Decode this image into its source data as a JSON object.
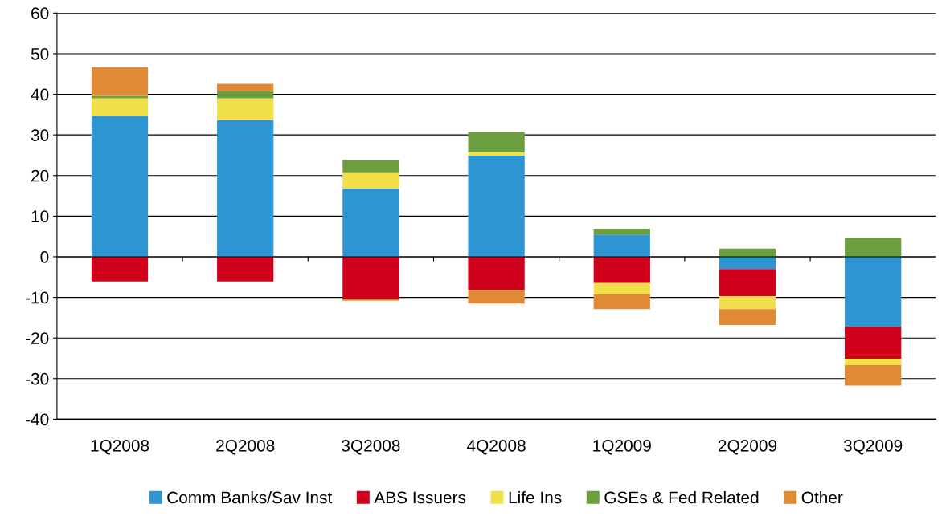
{
  "chart_data": {
    "type": "bar",
    "stacked": true,
    "categories": [
      "1Q2008",
      "2Q2008",
      "3Q2008",
      "4Q2008",
      "1Q2009",
      "2Q2009",
      "3Q2009"
    ],
    "series": [
      {
        "name": "Comm Banks/Sav Inst",
        "color": "#2e95d3",
        "values": [
          34.7,
          33.7,
          16.8,
          24.9,
          5.5,
          -3.0,
          -17.2
        ]
      },
      {
        "name": "ABS Issuers",
        "color": "#d0021b",
        "values": [
          -6.1,
          -6.1,
          -10.3,
          -8.2,
          -6.5,
          -6.7,
          -7.9
        ]
      },
      {
        "name": "Life Ins",
        "color": "#f2e04a",
        "values": [
          4.3,
          5.3,
          4.0,
          0.8,
          -2.8,
          -3.2,
          -1.6
        ]
      },
      {
        "name": "GSEs & Fed Related",
        "color": "#6a9e3f",
        "values": [
          0.6,
          1.8,
          3.0,
          5.0,
          1.4,
          2.0,
          4.7
        ]
      },
      {
        "name": "Other",
        "color": "#e08a35",
        "values": [
          7.1,
          1.8,
          -0.5,
          -3.3,
          -3.6,
          -3.9,
          -5.0
        ]
      }
    ],
    "ylim": [
      -40,
      60
    ],
    "yticks": [
      -40,
      -30,
      -20,
      -10,
      0,
      10,
      20,
      30,
      40,
      50,
      60
    ],
    "grid": "y",
    "legend": "bottom"
  }
}
